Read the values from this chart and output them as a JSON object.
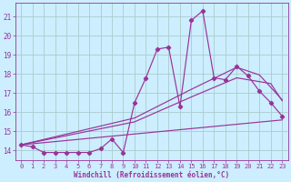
{
  "xlabel": "Windchill (Refroidissement éolien,°C)",
  "bg_color": "#cceeff",
  "grid_color": "#aacccc",
  "line_color": "#993399",
  "xlim": [
    -0.5,
    23.5
  ],
  "ylim": [
    13.5,
    21.7
  ],
  "yticks": [
    14,
    15,
    16,
    17,
    18,
    19,
    20,
    21
  ],
  "xticks": [
    0,
    1,
    2,
    3,
    4,
    5,
    6,
    7,
    8,
    9,
    10,
    11,
    12,
    13,
    14,
    15,
    16,
    17,
    18,
    19,
    20,
    21,
    22,
    23
  ],
  "series1_x": [
    0,
    1,
    2,
    3,
    4,
    5,
    6,
    7,
    8,
    9,
    10,
    11,
    12,
    13,
    14,
    15,
    16,
    17,
    18,
    19,
    20,
    21,
    22,
    23
  ],
  "series1_y": [
    14.3,
    14.2,
    13.9,
    13.9,
    13.9,
    13.9,
    13.9,
    14.1,
    14.6,
    13.9,
    16.5,
    17.8,
    19.3,
    19.4,
    16.3,
    20.8,
    21.3,
    17.8,
    17.7,
    18.4,
    17.9,
    17.1,
    16.5,
    15.8
  ],
  "trend1_x": [
    0,
    23
  ],
  "trend1_y": [
    14.3,
    15.6
  ],
  "trend2_x": [
    0,
    10,
    15,
    19,
    22,
    23
  ],
  "trend2_y": [
    14.3,
    15.5,
    16.8,
    17.8,
    17.5,
    16.6
  ],
  "trend3_x": [
    0,
    10,
    15,
    19,
    21,
    23
  ],
  "trend3_y": [
    14.3,
    15.7,
    17.2,
    18.35,
    17.95,
    16.65
  ]
}
